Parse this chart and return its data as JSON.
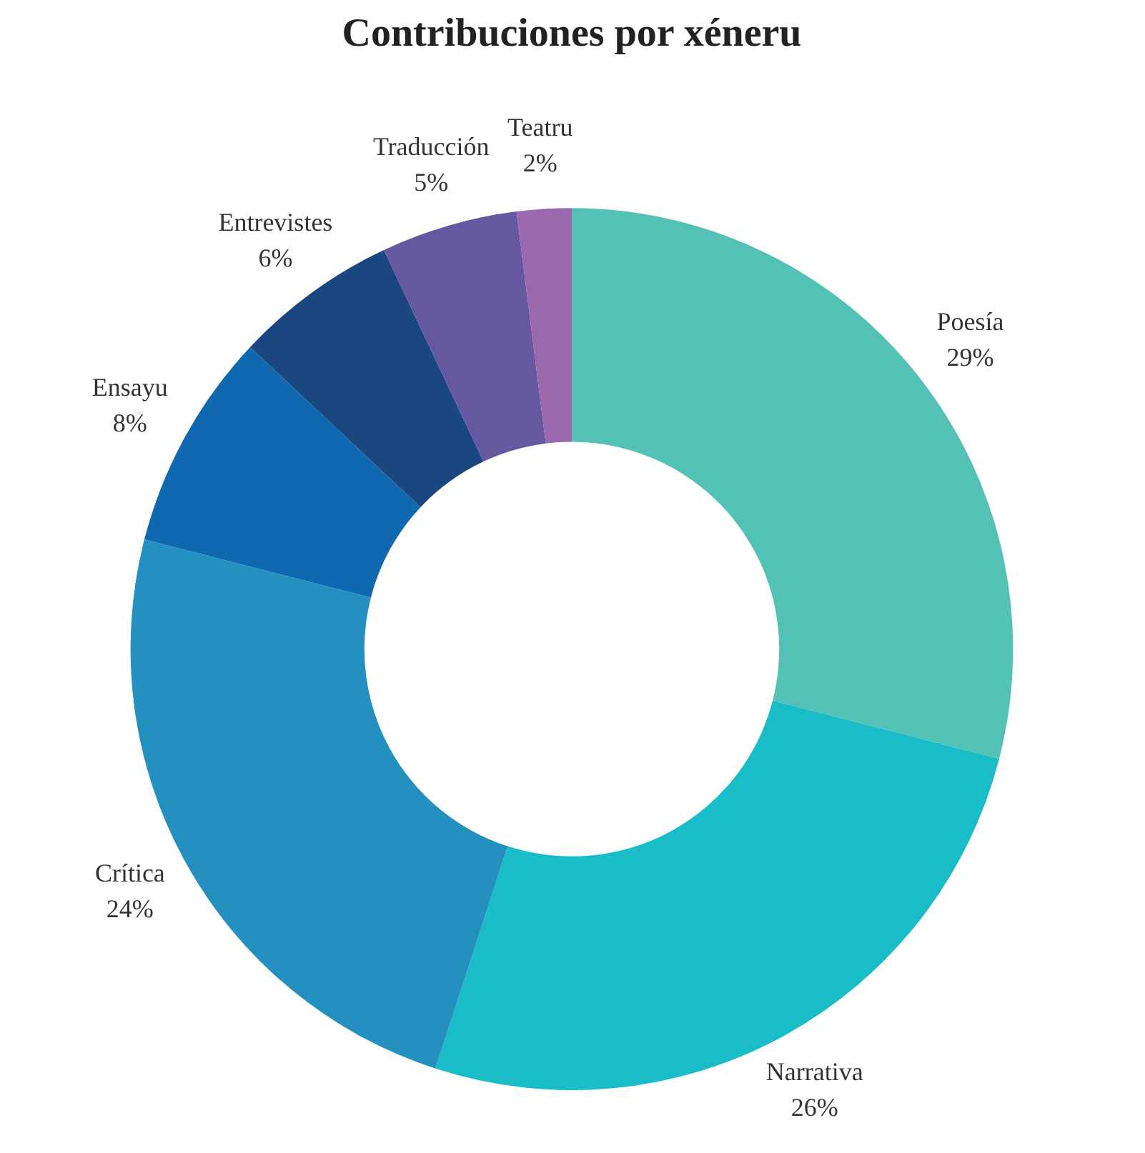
{
  "chart_data": {
    "type": "donut",
    "title": "Contribuciones por xéneru",
    "categories": [
      "Poesía",
      "Narrativa",
      "Crítica",
      "Ensayu",
      "Entrevistes",
      "Traducción",
      "Teatru"
    ],
    "values": [
      29,
      26,
      24,
      8,
      6,
      5,
      2
    ],
    "colors": [
      "#54c1b7",
      "#1abcc8",
      "#2390c0",
      "#1069b0",
      "#1a4780",
      "#6557a0",
      "#9a68ad"
    ],
    "value_labels": [
      "29%",
      "26%",
      "24%",
      "8%",
      "6%",
      "5%",
      "2%"
    ],
    "legend": false
  }
}
